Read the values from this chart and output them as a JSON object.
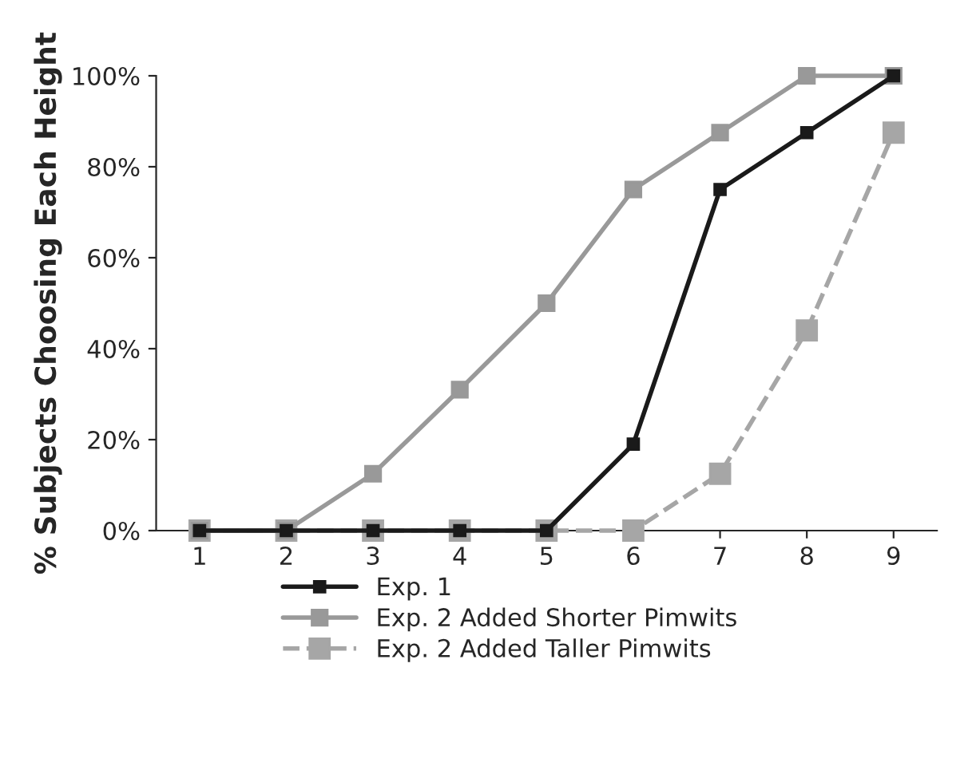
{
  "chart_data": {
    "type": "line",
    "ylabel": "% Subjects Choosing Each Height",
    "categories": [
      "1",
      "2",
      "3",
      "4",
      "5",
      "6",
      "7",
      "8",
      "9"
    ],
    "series": [
      {
        "name": "Exp. 1",
        "color": "#1a1a1a",
        "marker": "square",
        "line_style": "solid",
        "values": [
          0,
          0,
          0,
          0,
          0,
          19,
          75,
          87.5,
          100
        ]
      },
      {
        "name": "Exp. 2 Added Shorter Pimwits",
        "color": "#999999",
        "marker": "square",
        "line_style": "solid",
        "values": [
          0,
          0,
          12.5,
          31,
          50,
          75,
          87.5,
          100,
          100
        ]
      },
      {
        "name": "Exp. 2 Added Taller Pimwits",
        "color": "#a6a6a6",
        "marker": "square",
        "line_style": "dashed",
        "values": [
          0,
          0,
          0,
          0,
          0,
          0,
          12.5,
          44,
          87.5
        ]
      }
    ],
    "ylim": [
      0,
      100
    ],
    "yticks": [
      {
        "value": 0,
        "label": "0%"
      },
      {
        "value": 20,
        "label": "20%"
      },
      {
        "value": 40,
        "label": "40%"
      },
      {
        "value": 60,
        "label": "60%"
      },
      {
        "value": 80,
        "label": "80%"
      },
      {
        "value": 100,
        "label": "100%"
      }
    ],
    "grid": false,
    "legend": "bottom"
  }
}
